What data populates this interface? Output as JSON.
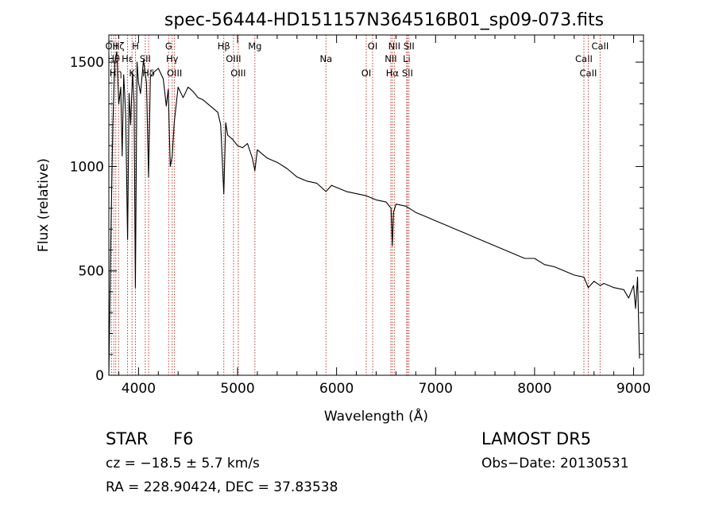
{
  "chart_data": {
    "type": "line",
    "title": "spec-56444-HD151157N364516B01_sp09-073.fits",
    "xlabel": "Wavelength (Å)",
    "ylabel": "Flux (relative)",
    "xlim": [
      3700,
      9100
    ],
    "ylim": [
      0,
      1630
    ],
    "x_ticks": [
      4000,
      5000,
      6000,
      7000,
      8000,
      9000
    ],
    "y_ticks": [
      0,
      500,
      1000,
      1500
    ],
    "grid": false,
    "series": [
      {
        "x": [
          3700,
          3720,
          3740,
          3760,
          3780,
          3800,
          3820,
          3835,
          3850,
          3870,
          3889,
          3905,
          3920,
          3940,
          3955,
          3968,
          3985,
          4000,
          4020,
          4050,
          4080,
          4101,
          4120,
          4150,
          4200,
          4250,
          4280,
          4300,
          4320,
          4340,
          4360,
          4400,
          4450,
          4500,
          4550,
          4600,
          4650,
          4700,
          4750,
          4800,
          4830,
          4861,
          4880,
          4900,
          4950,
          5000,
          5050,
          5100,
          5150,
          5175,
          5200,
          5300,
          5400,
          5500,
          5600,
          5700,
          5800,
          5893,
          5950,
          6000,
          6100,
          6200,
          6300,
          6400,
          6500,
          6550,
          6563,
          6575,
          6600,
          6700,
          6800,
          6900,
          7000,
          7100,
          7200,
          7300,
          7400,
          7500,
          7600,
          7700,
          7800,
          7900,
          8000,
          8100,
          8200,
          8300,
          8400,
          8498,
          8542,
          8600,
          8662,
          8700,
          8800,
          8900,
          8950,
          9000,
          9020,
          9040,
          9060
        ],
        "y": [
          0,
          650,
          1200,
          1500,
          1550,
          1300,
          1380,
          1050,
          1440,
          1250,
          650,
          1350,
          1200,
          1450,
          1300,
          420,
          1500,
          1400,
          1350,
          1510,
          1400,
          950,
          1430,
          1450,
          1470,
          1420,
          1290,
          1370,
          1000,
          1050,
          1210,
          1380,
          1330,
          1380,
          1360,
          1330,
          1320,
          1300,
          1280,
          1260,
          1200,
          870,
          1210,
          1150,
          1130,
          1100,
          1090,
          1110,
          1040,
          980,
          1080,
          1040,
          1020,
          990,
          950,
          930,
          920,
          880,
          910,
          900,
          880,
          870,
          860,
          840,
          830,
          800,
          620,
          780,
          820,
          810,
          780,
          760,
          740,
          720,
          700,
          680,
          660,
          640,
          620,
          600,
          580,
          560,
          560,
          530,
          520,
          500,
          480,
          470,
          420,
          450,
          430,
          440,
          420,
          410,
          370,
          430,
          320,
          470,
          80
        ]
      }
    ],
    "line_markers": [
      {
        "wl": 3727,
        "label": "OII"
      },
      {
        "wl": 3750,
        "label": "Hθ"
      },
      {
        "wl": 3770,
        "label": "Hη"
      },
      {
        "wl": 3798,
        "label": "Hζ"
      },
      {
        "wl": 3889,
        "label": "Hε"
      },
      {
        "wl": 3934,
        "label": "K"
      },
      {
        "wl": 3969,
        "label": "H"
      },
      {
        "wl": 4068,
        "label": "SII"
      },
      {
        "wl": 4101,
        "label": "Hδ"
      },
      {
        "wl": 4304,
        "label": "G"
      },
      {
        "wl": 4340,
        "label": "Hγ"
      },
      {
        "wl": 4363,
        "label": "OIII"
      },
      {
        "wl": 4861,
        "label": "Hβ"
      },
      {
        "wl": 4959,
        "label": "OIII"
      },
      {
        "wl": 5007,
        "label": "OIII"
      },
      {
        "wl": 5175,
        "label": "Mg"
      },
      {
        "wl": 5893,
        "label": "Na"
      },
      {
        "wl": 6300,
        "label": "OI"
      },
      {
        "wl": 6364,
        "label": "OI"
      },
      {
        "wl": 6548,
        "label": "NII"
      },
      {
        "wl": 6563,
        "label": "Hα"
      },
      {
        "wl": 6583,
        "label": "NII"
      },
      {
        "wl": 6708,
        "label": "Li"
      },
      {
        "wl": 6716,
        "label": "SII"
      },
      {
        "wl": 6731,
        "label": "SII"
      },
      {
        "wl": 8498,
        "label": "CaII"
      },
      {
        "wl": 8542,
        "label": "CaII"
      },
      {
        "wl": 8662,
        "label": "CaII"
      }
    ]
  },
  "info": {
    "star_label": "STAR",
    "class": "F6",
    "cz": "cz = −18.5 ± 5.7 km/s",
    "radec": "RA = 228.90424, DEC =  37.83538",
    "survey": "LAMOST  DR5",
    "obsdate": "Obs−Date: 20130531"
  }
}
